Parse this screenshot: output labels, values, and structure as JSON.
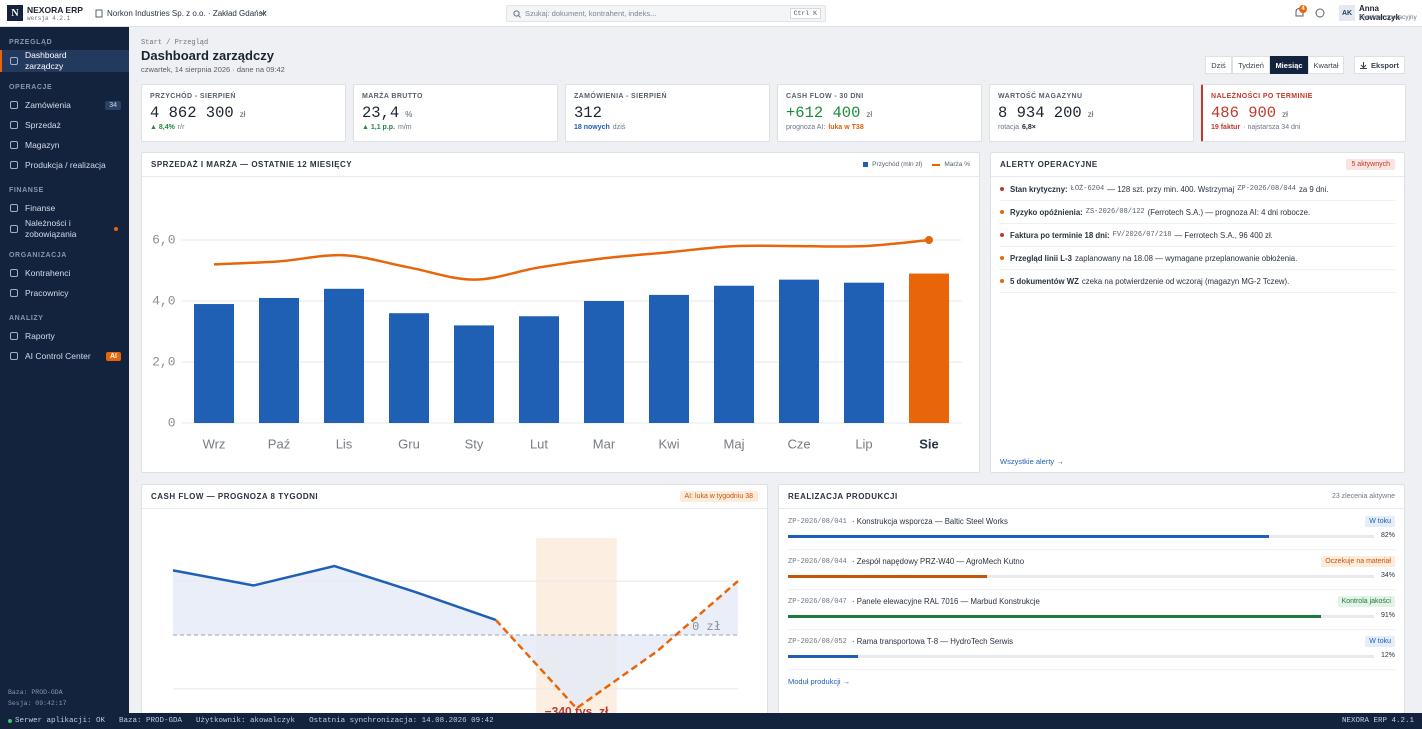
{
  "app": {
    "logo": "N",
    "name": "NEXORA ERP",
    "version": "wersja 4.2.1",
    "company": "Norkon Industries Sp. z o.o. · Zakład Gdańsk",
    "search_placeholder": "Szukaj: dokument, kontrahent, indeks...",
    "search_shortcut": "Ctrl K",
    "notifications": 4,
    "user_initials": "AK",
    "user_name": "Anna Kowalczyk",
    "user_role": "Dyrektor operacyjny"
  },
  "sidebar": {
    "sections": [
      {
        "title": "PRZEGLĄD",
        "items": [
          {
            "label": "Dashboard zarządczy",
            "active": true
          }
        ]
      },
      {
        "title": "OPERACJE",
        "items": [
          {
            "label": "Zamówienia",
            "badge": 34
          },
          {
            "label": "Sprzedaż"
          },
          {
            "label": "Magazyn"
          },
          {
            "label": "Produkcja / realizacja"
          }
        ]
      },
      {
        "title": "FINANSE",
        "items": [
          {
            "label": "Finanse"
          },
          {
            "label": "Należności i zobowiązania",
            "dot": true
          }
        ]
      },
      {
        "title": "ORGANIZACJA",
        "items": [
          {
            "label": "Kontrahenci"
          },
          {
            "label": "Pracownicy"
          }
        ]
      },
      {
        "title": "ANALIZY",
        "items": [
          {
            "label": "Raporty"
          },
          {
            "label": "AI Control Center",
            "badge": "AI",
            "badge_accent": true
          }
        ]
      }
    ],
    "footer": [
      "Baza: PROD-GDA",
      "Sesja: 09:42:17"
    ]
  },
  "page": {
    "breadcrumb": "Start / Przegląd",
    "title": "Dashboard zarządczy",
    "subtitle": "czwartek, 14 sierpnia 2026 · dane na 09:42",
    "periods": [
      {
        "label": "Dziś"
      },
      {
        "label": "Tydzień"
      },
      {
        "label": "Miesiąc",
        "active": true
      },
      {
        "label": "Kwartał"
      }
    ],
    "export": "Eksport"
  },
  "kpis": [
    {
      "label": "PRZYCHÓD - SIERPIEŃ",
      "value": "4 862 300",
      "unit": "zł",
      "note": [
        {
          "text": "▲ 8,4%",
          "color": "#1e8a3c",
          "bold": true
        },
        {
          "text": "r/r"
        }
      ]
    },
    {
      "label": "MARŻA BRUTTO",
      "value": "23,4",
      "unit": "%",
      "note": [
        {
          "text": "▲ 1,1 p.p.",
          "color": "#1e8a3c",
          "bold": true
        },
        {
          "text": "m/m"
        }
      ]
    },
    {
      "label": "ZAMÓWIENIA - SIERPIEŃ",
      "value": "312",
      "note": [
        {
          "text": "18 nowych",
          "color": "#1f5fb4",
          "bold": true
        },
        {
          "text": "dziś"
        }
      ]
    },
    {
      "label": "CASH FLOW - 30 DNI",
      "value": "+612 400",
      "value_color": "#1e8a3c",
      "unit": "zł",
      "note": [
        {
          "text": "prognoza AI:"
        },
        {
          "text": "luka w T38",
          "color": "#d9620a",
          "bold": true
        }
      ]
    },
    {
      "label": "WARTOŚĆ MAGAZYNU",
      "value": "8 934 200",
      "unit": "zł",
      "note": [
        {
          "text": "rotacja"
        },
        {
          "text": "6,8×",
          "color": "#1b2430",
          "bold": true
        }
      ]
    },
    {
      "label": "NALEŻNOŚCI PO TERMINIE",
      "label_color": "#c0392b",
      "value": "486 900",
      "value_color": "#c0392b",
      "unit": "zł",
      "alert": true,
      "note": [
        {
          "text": "19 faktur",
          "color": "#c0392b",
          "bold": true
        },
        {
          "text": "· najstarsza 34 dni"
        }
      ]
    }
  ],
  "chart_data": [
    {
      "type": "bar",
      "title": "SPRZEDAŻ I MARŻA — OSTATNIE 12 MIESIĘCY",
      "legend": "top-right",
      "grid": true,
      "categories": [
        "Wrz",
        "Paź",
        "Lis",
        "Gru",
        "Sty",
        "Lut",
        "Mar",
        "Kwi",
        "Maj",
        "Cze",
        "Lip",
        "Sie"
      ],
      "highlight_index": 11,
      "series": [
        {
          "name": "Przychód (mln zł)",
          "type": "bar",
          "color": "#1f5fb4",
          "highlight_color": "#e8650a",
          "values": [
            3.9,
            4.1,
            4.4,
            3.6,
            3.2,
            3.5,
            4.0,
            4.2,
            4.5,
            4.7,
            4.6,
            4.9
          ]
        },
        {
          "name": "Marża %",
          "type": "line",
          "color": "#e8650a",
          "values": [
            5.2,
            5.3,
            5.5,
            5.1,
            4.7,
            5.1,
            5.4,
            5.6,
            5.8,
            5.8,
            5.8,
            6.0
          ]
        }
      ],
      "ylim": [
        0,
        8
      ],
      "yticks": [
        0,
        {
          "value": 2,
          "label": "2,0"
        },
        {
          "value": 4,
          "label": "4,0"
        },
        {
          "value": 6,
          "label": "6,0"
        }
      ]
    },
    {
      "type": "line",
      "title": "CASH FLOW — PROGNOZA 8 TYGODNI",
      "badge": "AI: luka w tygodniu 38",
      "categories": [
        null,
        null,
        null,
        null,
        null,
        null,
        null,
        null
      ],
      "highlight_index": 5,
      "area_fill": "#e3eaf6",
      "series": [
        {
          "color": "#1f5fb4",
          "values": [
            300,
            230,
            320,
            200,
            70,
            null,
            null,
            null
          ]
        },
        {
          "color": "#e8650a",
          "dashed": true,
          "values": [
            null,
            null,
            null,
            null,
            70,
            -340,
            -75,
            250
          ],
          "value_labels": [
            null,
            null,
            null,
            null,
            null,
            "−340 tys. zł",
            null,
            null
          ]
        }
      ],
      "ylim": [
        -400,
        450
      ],
      "yticks": [
        {
          "value": 0,
          "label": "0 zł"
        }
      ],
      "grid_values": [
        -250,
        250
      ]
    }
  ],
  "alerts": {
    "title": "ALERTY OPERACYJNE",
    "badge": "5 aktywnych",
    "link": "Wszystkie alerty →",
    "items": [
      {
        "color": "#c0392b",
        "parts": [
          {
            "text": "Stan krytyczny:",
            "bold": true
          },
          {
            "text": "ŁOŻ-6204",
            "mono": true
          },
          {
            "text": "— 128 szt. przy min. 400. Wstrzymaj"
          },
          {
            "text": "ZP-2026/08/044",
            "mono": true
          },
          {
            "text": "za 9 dni."
          }
        ]
      },
      {
        "color": "#e8650a",
        "parts": [
          {
            "text": "Ryzyko opóźnienia:",
            "bold": true
          },
          {
            "text": "ZS-2026/08/122",
            "mono": true
          },
          {
            "text": "(Ferrotech S.A.) — prognoza AI: 4 dni robocze."
          }
        ]
      },
      {
        "color": "#c0392b",
        "parts": [
          {
            "text": "Faktura po terminie 18 dni:",
            "bold": true
          },
          {
            "text": "FV/2026/07/218",
            "mono": true
          },
          {
            "text": "— Ferrotech S.A., 96 400 zł."
          }
        ]
      },
      {
        "color": "#e8650a",
        "parts": [
          {
            "text": "Przegląd linii L-3",
            "bold": true
          },
          {
            "text": "zaplanowany na 18.08 — wymagane przeplanowanie obłożenia."
          }
        ]
      },
      {
        "color": "#e8650a",
        "parts": [
          {
            "text": "5 dokumentów WZ",
            "bold": true
          },
          {
            "text": "czeka na potwierdzenie od wczoraj (magazyn MG-2 Tczew)."
          }
        ]
      }
    ]
  },
  "production": {
    "title": "REALIZACJA PRODUKCJI",
    "count": "23 zlecenia aktywne",
    "link": "Moduł produkcji →",
    "items": [
      {
        "code": "ZP-2026/08/041",
        "title": "· Konstrukcja wsporcza — Baltic Steel Works",
        "status": "W toku",
        "color": "#1f5fb4",
        "status_bg": "#e4edf9",
        "progress": 82,
        "progress_label": "82%"
      },
      {
        "code": "ZP-2026/08/044",
        "title": "· Zespół napędowy PRZ-W40 — AgroMech Kutno",
        "status": "Oczekuje na materiał",
        "color": "#c4560a",
        "status_bg": "#fdebdc",
        "progress": 34,
        "progress_label": "34%"
      },
      {
        "code": "ZP-2026/08/047",
        "title": "· Panele elewacyjne RAL 7016 — Marbud Konstrukcje",
        "status": "Kontrola jakości",
        "color": "#1e7a3c",
        "status_bg": "#e2f3e7",
        "progress": 91,
        "progress_label": "91%"
      },
      {
        "code": "ZP-2026/08/052",
        "title": "· Rama transportowa T-8 — HydroTech Serwis",
        "status": "W toku",
        "color": "#1f5fb4",
        "status_bg": "#e4edf9",
        "progress": 12,
        "progress_label": "12%"
      }
    ]
  },
  "status_bar": {
    "left": [
      "Serwer aplikacji: OK",
      "Baza: PROD-GDA",
      "Użytkownik: akowalczyk",
      "Ostatnia synchronizacja: 14.08.2026 09:42"
    ],
    "right": "NEXORA ERP 4.2.1"
  }
}
